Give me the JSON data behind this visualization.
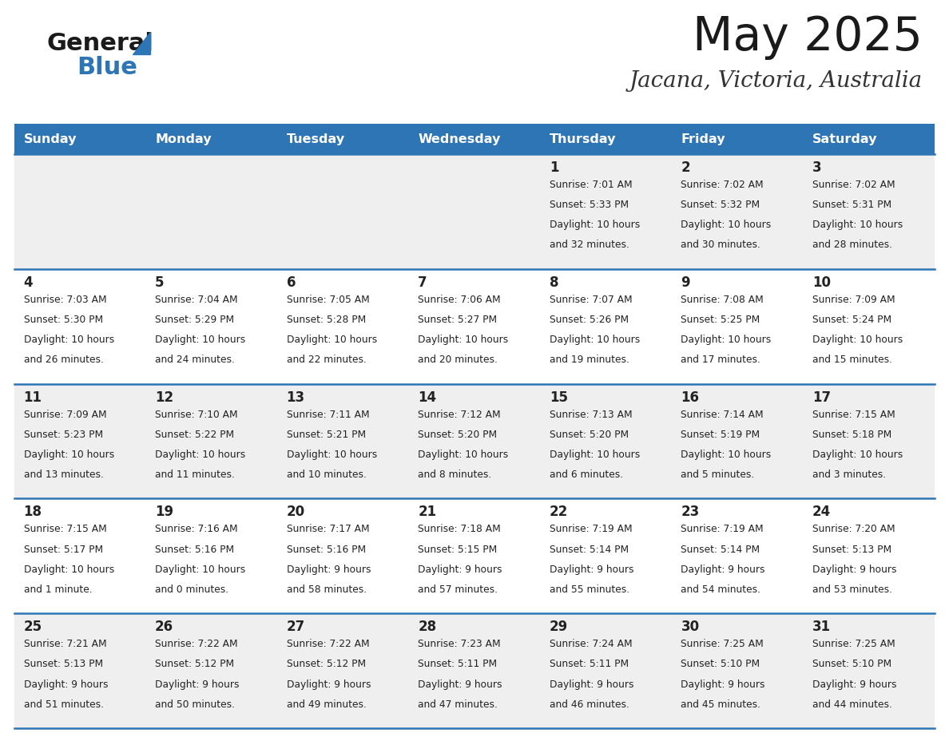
{
  "title": "May 2025",
  "subtitle": "Jacana, Victoria, Australia",
  "header_bg": "#2E75B6",
  "header_text_color": "#FFFFFF",
  "days_of_week": [
    "Sunday",
    "Monday",
    "Tuesday",
    "Wednesday",
    "Thursday",
    "Friday",
    "Saturday"
  ],
  "row_bg_even": "#EFEFEF",
  "row_bg_odd": "#FFFFFF",
  "cell_text_color": "#222222",
  "title_color": "#1a1a1a",
  "subtitle_color": "#333333",
  "divider_color": "#2E75B6",
  "logo_black": "#1a1a1a",
  "logo_blue": "#2E75B6",
  "calendar_data": [
    [
      {
        "day": "",
        "sunrise": "",
        "sunset": "",
        "daylight": ""
      },
      {
        "day": "",
        "sunrise": "",
        "sunset": "",
        "daylight": ""
      },
      {
        "day": "",
        "sunrise": "",
        "sunset": "",
        "daylight": ""
      },
      {
        "day": "",
        "sunrise": "",
        "sunset": "",
        "daylight": ""
      },
      {
        "day": "1",
        "sunrise": "7:01 AM",
        "sunset": "5:33 PM",
        "daylight": "10 hours and 32 minutes."
      },
      {
        "day": "2",
        "sunrise": "7:02 AM",
        "sunset": "5:32 PM",
        "daylight": "10 hours and 30 minutes."
      },
      {
        "day": "3",
        "sunrise": "7:02 AM",
        "sunset": "5:31 PM",
        "daylight": "10 hours and 28 minutes."
      }
    ],
    [
      {
        "day": "4",
        "sunrise": "7:03 AM",
        "sunset": "5:30 PM",
        "daylight": "10 hours and 26 minutes."
      },
      {
        "day": "5",
        "sunrise": "7:04 AM",
        "sunset": "5:29 PM",
        "daylight": "10 hours and 24 minutes."
      },
      {
        "day": "6",
        "sunrise": "7:05 AM",
        "sunset": "5:28 PM",
        "daylight": "10 hours and 22 minutes."
      },
      {
        "day": "7",
        "sunrise": "7:06 AM",
        "sunset": "5:27 PM",
        "daylight": "10 hours and 20 minutes."
      },
      {
        "day": "8",
        "sunrise": "7:07 AM",
        "sunset": "5:26 PM",
        "daylight": "10 hours and 19 minutes."
      },
      {
        "day": "9",
        "sunrise": "7:08 AM",
        "sunset": "5:25 PM",
        "daylight": "10 hours and 17 minutes."
      },
      {
        "day": "10",
        "sunrise": "7:09 AM",
        "sunset": "5:24 PM",
        "daylight": "10 hours and 15 minutes."
      }
    ],
    [
      {
        "day": "11",
        "sunrise": "7:09 AM",
        "sunset": "5:23 PM",
        "daylight": "10 hours and 13 minutes."
      },
      {
        "day": "12",
        "sunrise": "7:10 AM",
        "sunset": "5:22 PM",
        "daylight": "10 hours and 11 minutes."
      },
      {
        "day": "13",
        "sunrise": "7:11 AM",
        "sunset": "5:21 PM",
        "daylight": "10 hours and 10 minutes."
      },
      {
        "day": "14",
        "sunrise": "7:12 AM",
        "sunset": "5:20 PM",
        "daylight": "10 hours and 8 minutes."
      },
      {
        "day": "15",
        "sunrise": "7:13 AM",
        "sunset": "5:20 PM",
        "daylight": "10 hours and 6 minutes."
      },
      {
        "day": "16",
        "sunrise": "7:14 AM",
        "sunset": "5:19 PM",
        "daylight": "10 hours and 5 minutes."
      },
      {
        "day": "17",
        "sunrise": "7:15 AM",
        "sunset": "5:18 PM",
        "daylight": "10 hours and 3 minutes."
      }
    ],
    [
      {
        "day": "18",
        "sunrise": "7:15 AM",
        "sunset": "5:17 PM",
        "daylight": "10 hours and 1 minute."
      },
      {
        "day": "19",
        "sunrise": "7:16 AM",
        "sunset": "5:16 PM",
        "daylight": "10 hours and 0 minutes."
      },
      {
        "day": "20",
        "sunrise": "7:17 AM",
        "sunset": "5:16 PM",
        "daylight": "9 hours and 58 minutes."
      },
      {
        "day": "21",
        "sunrise": "7:18 AM",
        "sunset": "5:15 PM",
        "daylight": "9 hours and 57 minutes."
      },
      {
        "day": "22",
        "sunrise": "7:19 AM",
        "sunset": "5:14 PM",
        "daylight": "9 hours and 55 minutes."
      },
      {
        "day": "23",
        "sunrise": "7:19 AM",
        "sunset": "5:14 PM",
        "daylight": "9 hours and 54 minutes."
      },
      {
        "day": "24",
        "sunrise": "7:20 AM",
        "sunset": "5:13 PM",
        "daylight": "9 hours and 53 minutes."
      }
    ],
    [
      {
        "day": "25",
        "sunrise": "7:21 AM",
        "sunset": "5:13 PM",
        "daylight": "9 hours and 51 minutes."
      },
      {
        "day": "26",
        "sunrise": "7:22 AM",
        "sunset": "5:12 PM",
        "daylight": "9 hours and 50 minutes."
      },
      {
        "day": "27",
        "sunrise": "7:22 AM",
        "sunset": "5:12 PM",
        "daylight": "9 hours and 49 minutes."
      },
      {
        "day": "28",
        "sunrise": "7:23 AM",
        "sunset": "5:11 PM",
        "daylight": "9 hours and 47 minutes."
      },
      {
        "day": "29",
        "sunrise": "7:24 AM",
        "sunset": "5:11 PM",
        "daylight": "9 hours and 46 minutes."
      },
      {
        "day": "30",
        "sunrise": "7:25 AM",
        "sunset": "5:10 PM",
        "daylight": "9 hours and 45 minutes."
      },
      {
        "day": "31",
        "sunrise": "7:25 AM",
        "sunset": "5:10 PM",
        "daylight": "9 hours and 44 minutes."
      }
    ]
  ]
}
